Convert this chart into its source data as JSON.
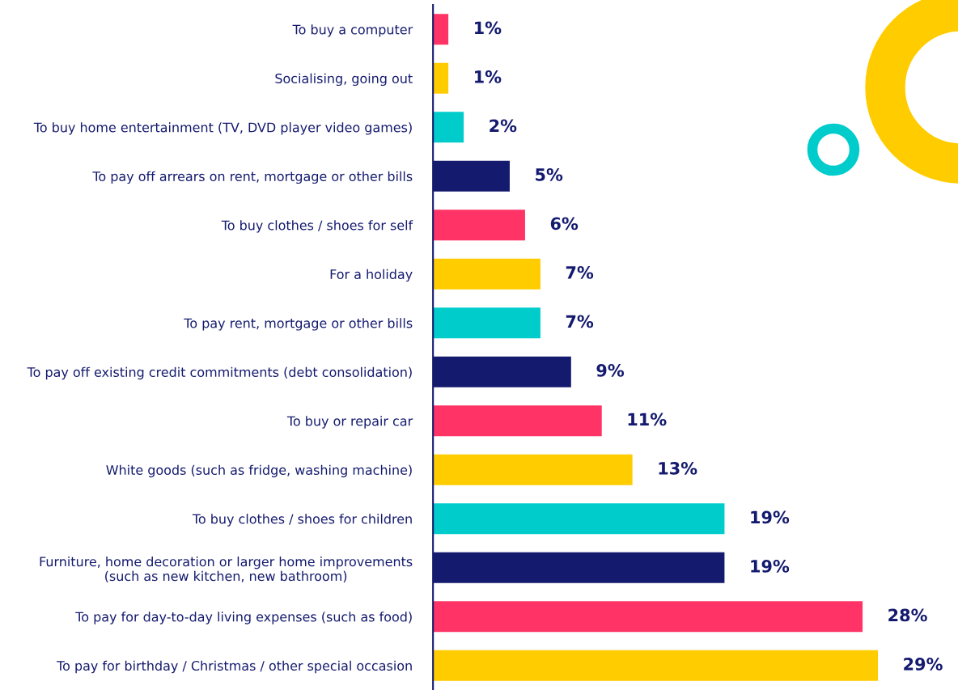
{
  "chart_data": {
    "type": "bar",
    "orientation": "horizontal",
    "data_labels": true,
    "categories": [
      "To buy a computer",
      "Socialising, going out",
      "To buy home entertainment (TV, DVD player video games)",
      "To pay off arrears on rent, mortgage or other bills",
      "To buy clothes / shoes for self",
      "For a holiday",
      "To pay rent, mortgage or other bills",
      "To pay off existing credit commitments (debt consolidation)",
      "To buy or repair car",
      "White goods (such as fridge, washing machine)",
      "To buy clothes / shoes for children",
      "Furniture, home decoration or larger home improvements\n(such as new kitchen, new bathroom)",
      "To pay for day-to-day living expenses (such as food)",
      "To pay for birthday / Christmas / other special occasion"
    ],
    "values": [
      1,
      1,
      2,
      5,
      6,
      7,
      7,
      9,
      11,
      13,
      19,
      19,
      28,
      29
    ],
    "value_labels": [
      "1%",
      "1%",
      "2%",
      "5%",
      "6%",
      "7%",
      "7%",
      "9%",
      "11%",
      "13%",
      "19%",
      "19%",
      "28%",
      "29%"
    ],
    "colors": [
      "#ff3366",
      "#ffcc00",
      "#00cccc",
      "#141a6e",
      "#ff3366",
      "#ffcc00",
      "#00cccc",
      "#141a6e",
      "#ff3366",
      "#ffcc00",
      "#00cccc",
      "#141a6e",
      "#ff3366",
      "#ffcc00"
    ],
    "grid": false
  }
}
